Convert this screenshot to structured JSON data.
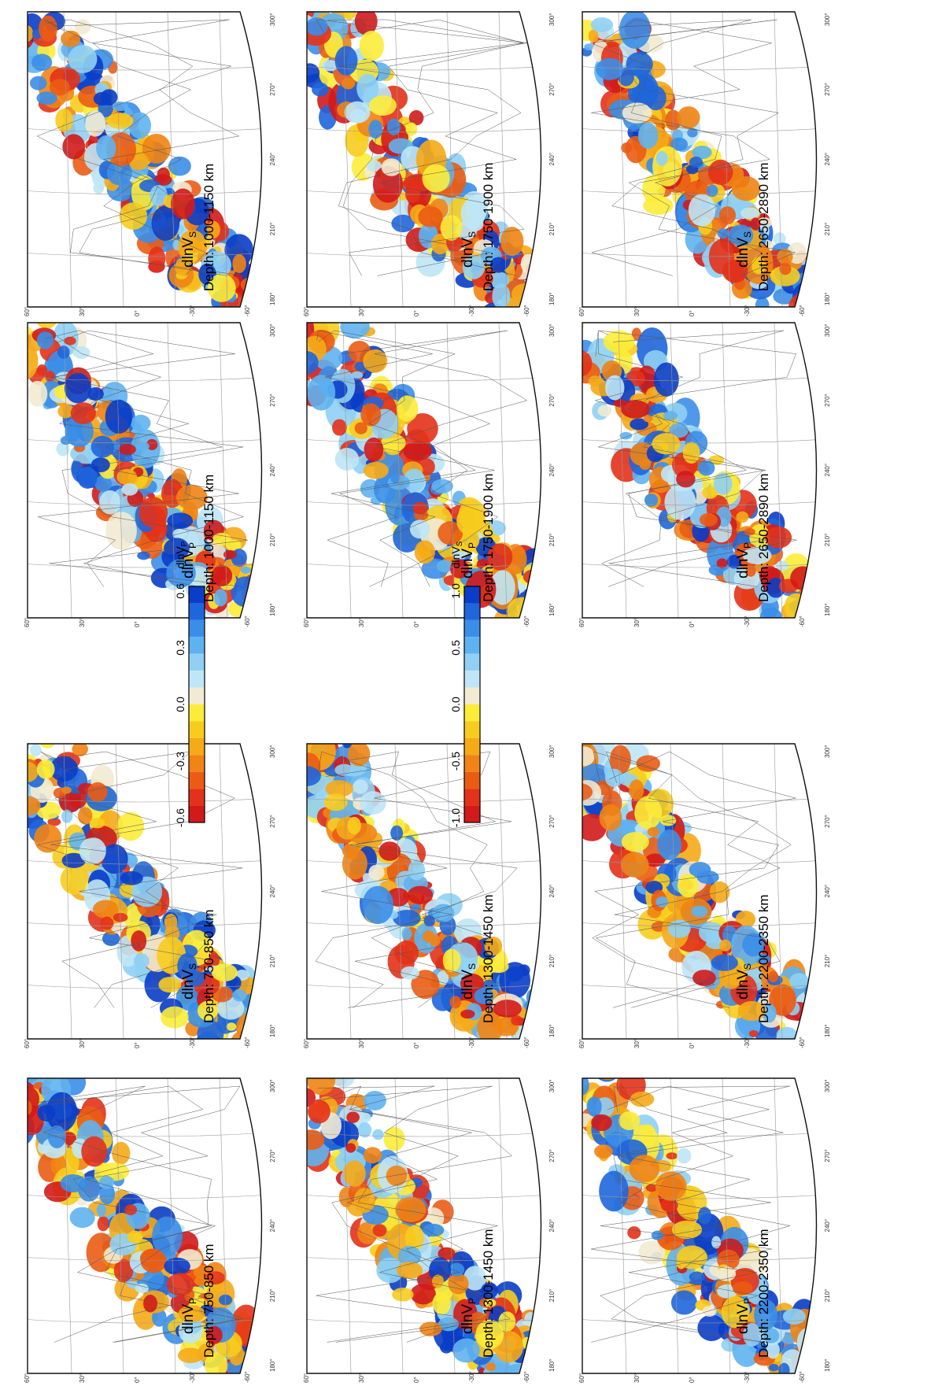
{
  "panels": [
    {
      "var": "dlnV",
      "sub": "P",
      "depth": "Depth: 750-850 km",
      "cbar": "P"
    },
    {
      "var": "dlnV",
      "sub": "S",
      "depth": "Depth: 750-850 km",
      "cbar": "S"
    },
    {
      "var": "dlnV",
      "sub": "P",
      "depth": "Depth: 1300-1450 km",
      "cbar": "P"
    },
    {
      "var": "dlnV",
      "sub": "S",
      "depth": "Depth: 1300-1450 km",
      "cbar": "S"
    },
    {
      "var": "dlnV",
      "sub": "P",
      "depth": "Depth: 2200-2350 km",
      "cbar": "P"
    },
    {
      "var": "dlnV",
      "sub": "S",
      "depth": "Depth: 2200-2350 km",
      "cbar": "S"
    },
    {
      "var": "dlnV",
      "sub": "P",
      "depth": "Depth: 1000-1150 km",
      "cbar": "P"
    },
    {
      "var": "dlnV",
      "sub": "S",
      "depth": "Depth: 1000-1150 km",
      "cbar": "S"
    },
    {
      "var": "dlnV",
      "sub": "P",
      "depth": "Depth: 1750-1900 km",
      "cbar": "P"
    },
    {
      "var": "dlnV",
      "sub": "S",
      "depth": "Depth: 1750-1900 km",
      "cbar": "S"
    },
    {
      "var": "dlnV",
      "sub": "P",
      "depth": "Depth: 2650-2890 km",
      "cbar": "P"
    },
    {
      "var": "dlnV",
      "sub": "S",
      "depth": "Depth: 2650-2890 km",
      "cbar": "S"
    }
  ],
  "lon_ticks": [
    "180°",
    "210°",
    "240°",
    "270°",
    "300°"
  ],
  "lat_ticks": [
    "60°",
    "30°",
    "0°",
    "-30°",
    "-60°"
  ],
  "colorbars": [
    {
      "var": "dlnV",
      "sub": "P",
      "ticks": [
        "0.6",
        "0.3",
        "0.0",
        "-0.3",
        "-0.6"
      ],
      "max": 0.6
    },
    {
      "var": "dlnV",
      "sub": "S",
      "ticks": [
        "1.0",
        "0.5",
        "0.0",
        "-0.5",
        "-1.0"
      ],
      "max": 1.0
    }
  ],
  "palette": [
    "#0a3dc8",
    "#1f66dc",
    "#3b8ee8",
    "#5fb2f0",
    "#8fd0f4",
    "#bfe6f6",
    "#f2ead2",
    "#fcec3a",
    "#f7cc1e",
    "#f5aa18",
    "#f08414",
    "#ea5c14",
    "#e3321a",
    "#d21a1a"
  ]
}
